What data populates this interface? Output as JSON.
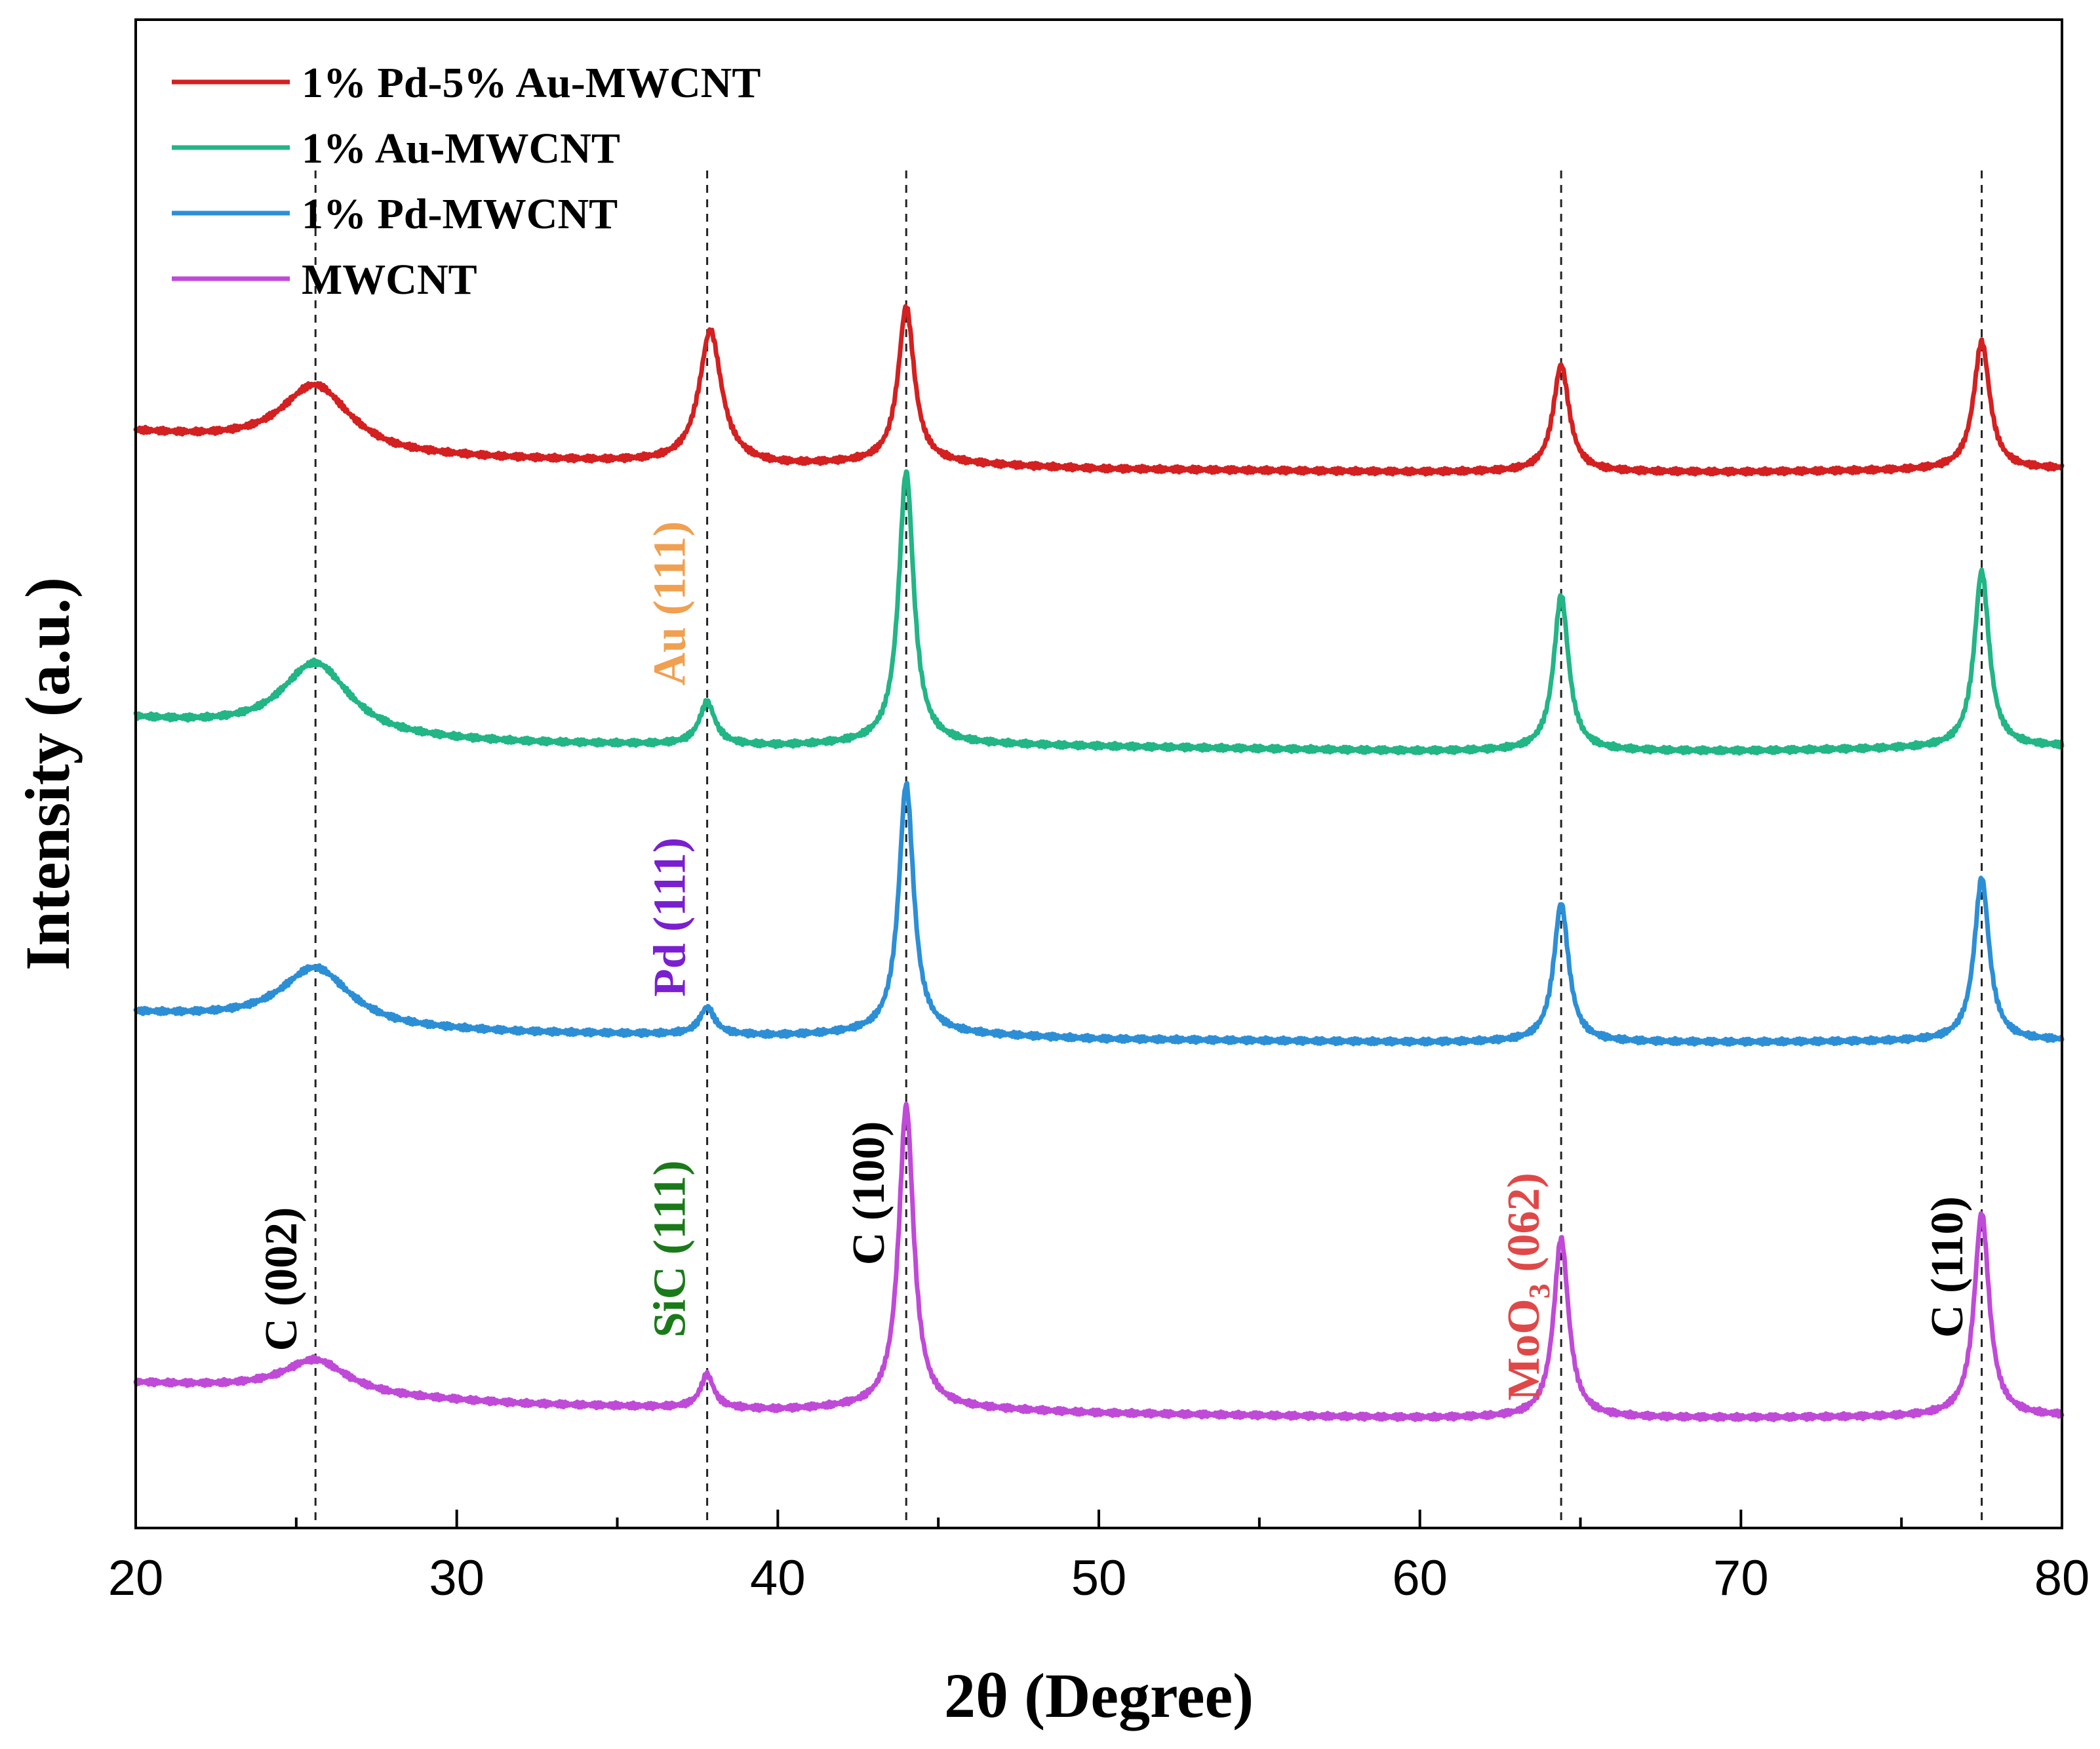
{
  "chart_data": {
    "type": "line",
    "title": "",
    "xlabel": "2θ (Degree)",
    "ylabel": "Intensity (a.u.)",
    "xlim": [
      20,
      80
    ],
    "ylim": [
      0,
      1
    ],
    "x_ticks": [
      "20",
      "30",
      "40",
      "50",
      "60",
      "70",
      "80"
    ],
    "grid": false,
    "legend_position": "top-left",
    "series": [
      {
        "name": "1% Pd-5% Au-MWCNT",
        "color": "#d42020",
        "baseline": 0.726,
        "background": [
          [
            20,
            0.726
          ],
          [
            24,
            0.718
          ],
          [
            28,
            0.71
          ],
          [
            32,
            0.708
          ],
          [
            40,
            0.704
          ],
          [
            44,
            0.706
          ],
          [
            50,
            0.702
          ],
          [
            60,
            0.7
          ],
          [
            70,
            0.7
          ],
          [
            80,
            0.702
          ]
        ],
        "peaks": [
          {
            "center": 25.6,
            "height": 0.043,
            "width": 1.3
          },
          {
            "center": 37.9,
            "height": 0.088,
            "width": 0.42
          },
          {
            "center": 44.0,
            "height": 0.103,
            "width": 0.3
          },
          {
            "center": 64.4,
            "height": 0.071,
            "width": 0.3
          },
          {
            "center": 77.5,
            "height": 0.085,
            "width": 0.3
          }
        ]
      },
      {
        "name": "1% Au-MWCNT",
        "color": "#22b585",
        "baseline": 0.536,
        "background": [
          [
            20,
            0.536
          ],
          [
            24,
            0.528
          ],
          [
            28,
            0.522
          ],
          [
            32,
            0.52
          ],
          [
            40,
            0.518
          ],
          [
            44,
            0.52
          ],
          [
            50,
            0.518
          ],
          [
            60,
            0.515
          ],
          [
            70,
            0.515
          ],
          [
            80,
            0.518
          ]
        ],
        "peaks": [
          {
            "center": 25.6,
            "height": 0.048,
            "width": 1.3
          },
          {
            "center": 37.8,
            "height": 0.028,
            "width": 0.3
          },
          {
            "center": 44.0,
            "height": 0.18,
            "width": 0.28
          },
          {
            "center": 64.4,
            "height": 0.103,
            "width": 0.28
          },
          {
            "center": 77.5,
            "height": 0.117,
            "width": 0.28
          }
        ]
      },
      {
        "name": "1% Pd-MWCNT",
        "color": "#2c8fd6",
        "baseline": 0.341,
        "background": [
          [
            20,
            0.341
          ],
          [
            24,
            0.336
          ],
          [
            28,
            0.33
          ],
          [
            32,
            0.328
          ],
          [
            40,
            0.326
          ],
          [
            44,
            0.328
          ],
          [
            50,
            0.324
          ],
          [
            60,
            0.322
          ],
          [
            70,
            0.322
          ],
          [
            80,
            0.323
          ]
        ],
        "peaks": [
          {
            "center": 25.6,
            "height": 0.038,
            "width": 1.3
          },
          {
            "center": 37.8,
            "height": 0.018,
            "width": 0.28
          },
          {
            "center": 44.0,
            "height": 0.165,
            "width": 0.28
          },
          {
            "center": 64.4,
            "height": 0.092,
            "width": 0.28
          },
          {
            "center": 77.5,
            "height": 0.108,
            "width": 0.28
          }
        ]
      },
      {
        "name": "MWCNT",
        "color": "#c04ad8",
        "baseline": 0.096,
        "background": [
          [
            20,
            0.096
          ],
          [
            24,
            0.092
          ],
          [
            28,
            0.086
          ],
          [
            32,
            0.082
          ],
          [
            40,
            0.078
          ],
          [
            44,
            0.08
          ],
          [
            50,
            0.076
          ],
          [
            60,
            0.073
          ],
          [
            70,
            0.073
          ],
          [
            80,
            0.074
          ]
        ],
        "peaks": [
          {
            "center": 25.6,
            "height": 0.022,
            "width": 1.2
          },
          {
            "center": 37.8,
            "height": 0.022,
            "width": 0.25
          },
          {
            "center": 44.0,
            "height": 0.2,
            "width": 0.28
          },
          {
            "center": 64.4,
            "height": 0.119,
            "width": 0.28
          },
          {
            "center": 77.5,
            "height": 0.135,
            "width": 0.28
          }
        ]
      }
    ],
    "reference_lines": [
      25.6,
      37.8,
      44.0,
      64.4,
      77.5
    ],
    "annotations": [
      {
        "text": "C (002)",
        "color": "#000000",
        "x": 25.0,
        "y": 0.165
      },
      {
        "text": "SiC (111)",
        "color": "#1a7a1a",
        "x": 37.1,
        "y": 0.185
      },
      {
        "text": "C (100)",
        "color": "#000000",
        "x": 43.3,
        "y": 0.222
      },
      {
        "text": "MoO",
        "subscript": "3",
        "suffix": " (062)",
        "color": "#e04848",
        "x": 63.7,
        "y": 0.16
      },
      {
        "text": "C (110)",
        "color": "#000000",
        "x": 76.9,
        "y": 0.173
      },
      {
        "text": "Pd (111)",
        "color": "#7a1fd0",
        "x": 37.1,
        "y": 0.405
      },
      {
        "text": "Au (111)",
        "color": "#f0a050",
        "x": 37.1,
        "y": 0.613
      }
    ]
  }
}
